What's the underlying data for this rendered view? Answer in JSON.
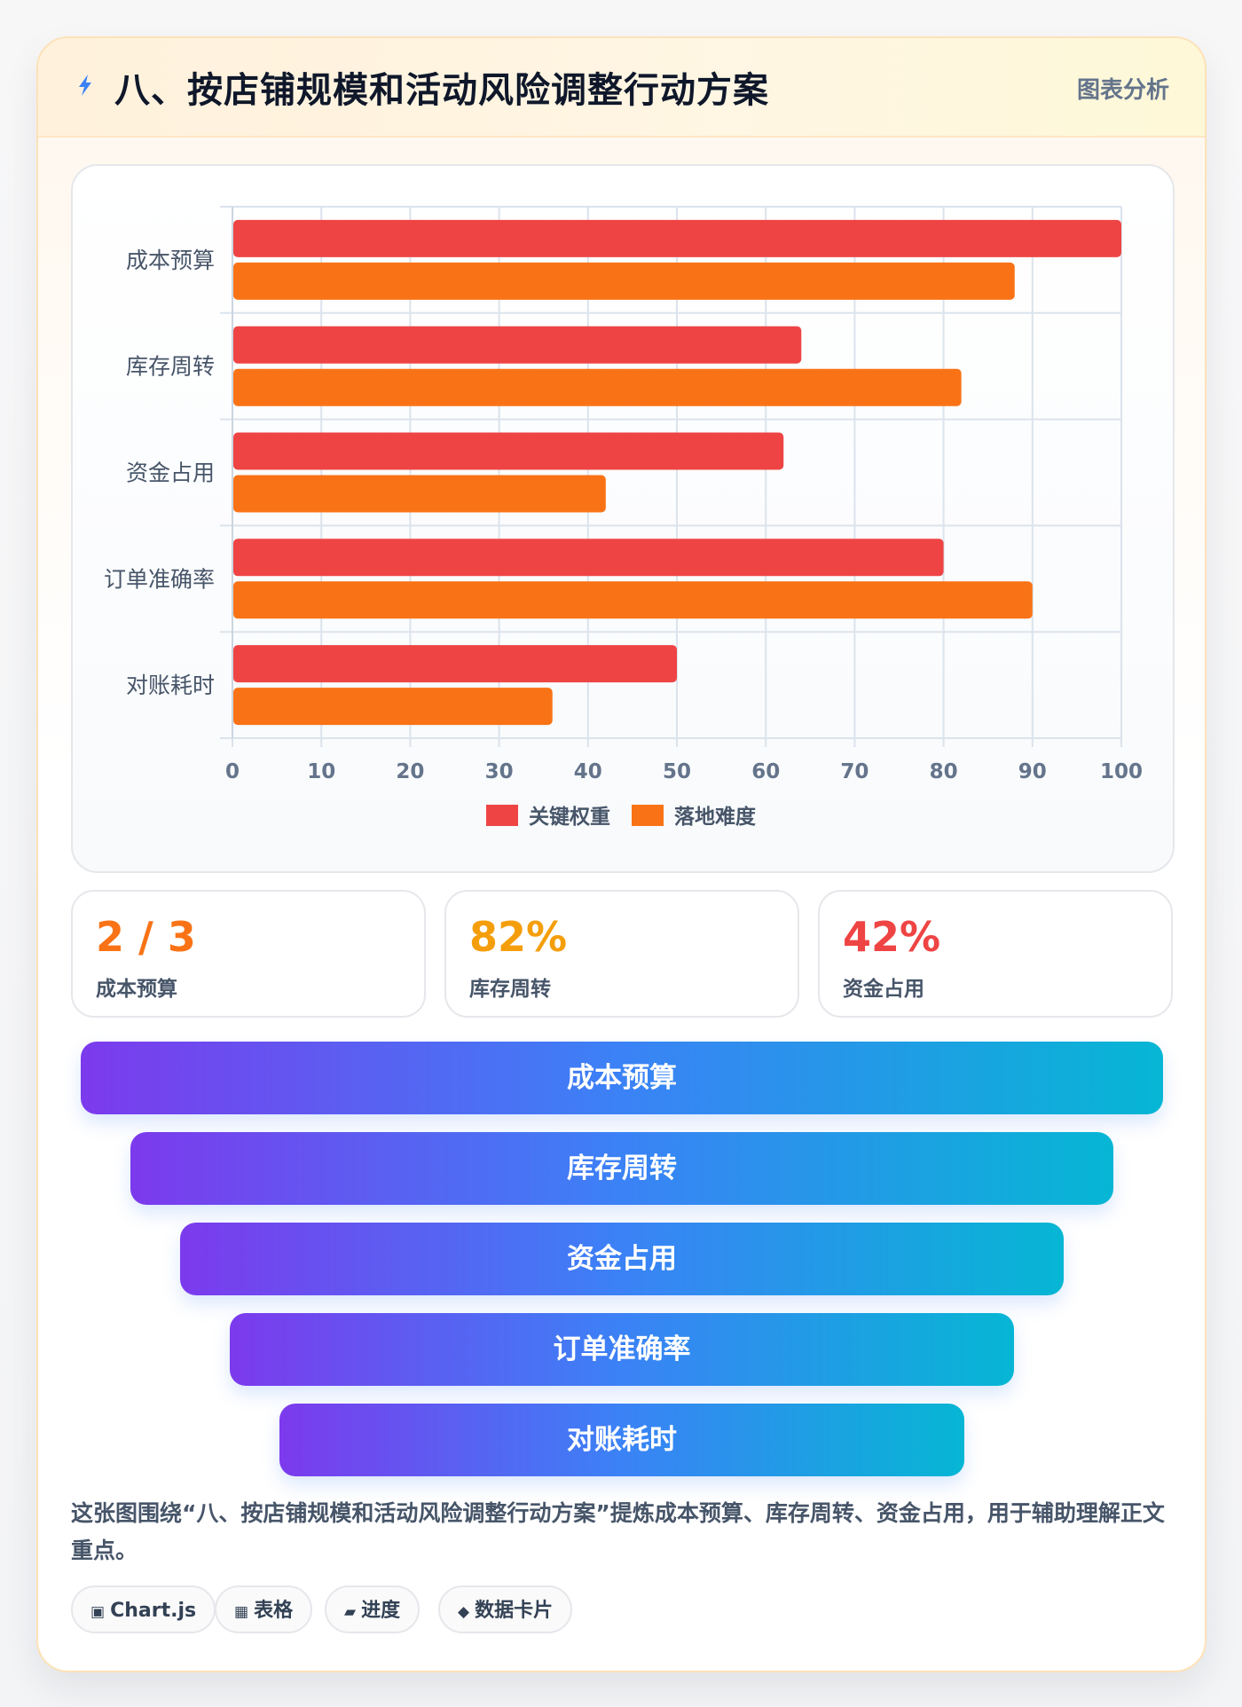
{
  "header": {
    "title": "八、按店铺规模和活动风险调整行动方案",
    "tag": "图表分析"
  },
  "chart_data": {
    "type": "bar",
    "orientation": "horizontal",
    "categories": [
      "成本预算",
      "库存周转",
      "资金占用",
      "订单准确率",
      "对账耗时"
    ],
    "series": [
      {
        "name": "关键权重",
        "color": "#ef4444",
        "values": [
          100,
          64,
          62,
          80,
          50
        ]
      },
      {
        "name": "落地难度",
        "color": "#f97316",
        "values": [
          88,
          82,
          42,
          90,
          36
        ]
      }
    ],
    "xlim": [
      0,
      100
    ],
    "xticks": [
      "0",
      "10",
      "20",
      "30",
      "40",
      "50",
      "60",
      "70",
      "80",
      "90",
      "100"
    ],
    "grid": true,
    "legend_position": "bottom"
  },
  "stats": [
    {
      "value": "2 / 3",
      "label": "成本预算",
      "color": "#f97316"
    },
    {
      "value": "82%",
      "label": "库存周转",
      "color": "#f59e0b"
    },
    {
      "value": "42%",
      "label": "资金占用",
      "color": "#ef4444"
    }
  ],
  "funnel": [
    "成本预算",
    "库存周转",
    "资金占用",
    "订单准确率",
    "对账耗时"
  ],
  "description": "这张图围绕“八、按店铺规模和活动风险调整行动方案”提炼成本预算、库存周转、资金占用，用于辅助理解正文重点。",
  "tags": [
    {
      "icon": "▣",
      "label": "Chart.js"
    },
    {
      "icon": "▦",
      "label": "表格"
    },
    {
      "icon": "▰",
      "label": "进度"
    },
    {
      "icon": "◆",
      "label": "数据卡片"
    }
  ]
}
